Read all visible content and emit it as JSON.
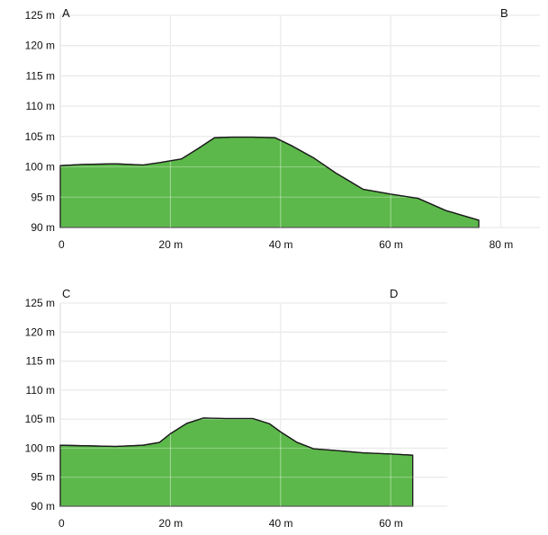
{
  "chart_data": [
    {
      "type": "area",
      "start_label": "A",
      "end_label": "B",
      "y_ticks": [
        "125 m",
        "120 m",
        "115 m",
        "110 m",
        "105 m",
        "100 m",
        "95 m",
        "90 m"
      ],
      "x_ticks": [
        "0",
        "20 m",
        "40 m",
        "60 m",
        "80 m"
      ],
      "xlim": [
        0,
        80
      ],
      "ylim": [
        90,
        125
      ],
      "grid": true,
      "fill_color": "#5cb84a",
      "x": [
        0,
        4,
        10,
        15,
        18,
        22,
        25,
        28,
        31,
        35,
        39,
        42,
        46,
        50,
        55,
        60,
        65,
        70,
        76
      ],
      "y": [
        100.2,
        100.4,
        100.5,
        100.3,
        100.7,
        101.3,
        103.0,
        104.8,
        104.9,
        104.9,
        104.8,
        103.5,
        101.5,
        99.0,
        96.3,
        95.5,
        94.8,
        92.8,
        91.2
      ]
    },
    {
      "type": "area",
      "start_label": "C",
      "end_label": "D",
      "y_ticks": [
        "125 m",
        "120 m",
        "115 m",
        "110 m",
        "105 m",
        "100 m",
        "95 m",
        "90 m"
      ],
      "x_ticks": [
        "0",
        "20 m",
        "40 m",
        "60 m"
      ],
      "xlim": [
        0,
        60
      ],
      "ylim": [
        90,
        125
      ],
      "grid": true,
      "fill_color": "#5cb84a",
      "x": [
        0,
        5,
        10,
        15,
        18,
        20,
        23,
        26,
        30,
        35,
        38,
        40,
        43,
        46,
        50,
        55,
        60,
        64
      ],
      "y": [
        100.5,
        100.4,
        100.3,
        100.5,
        101.0,
        102.5,
        104.3,
        105.2,
        105.1,
        105.1,
        104.2,
        102.8,
        101.0,
        99.9,
        99.6,
        99.2,
        99.0,
        98.8
      ]
    }
  ]
}
